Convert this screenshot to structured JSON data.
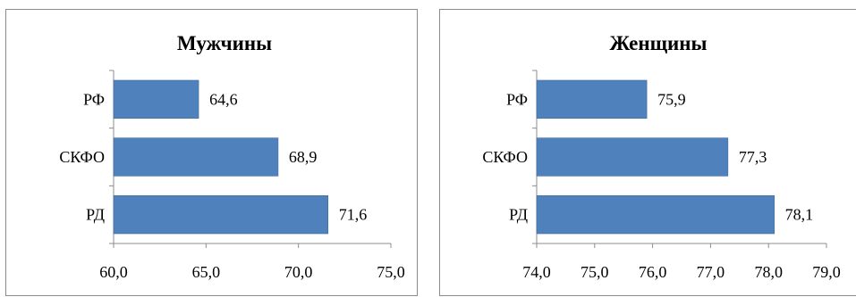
{
  "chart_data": [
    {
      "type": "bar",
      "orientation": "horizontal",
      "title": "Мужчины",
      "categories": [
        "РФ",
        "СКФО",
        "РД"
      ],
      "values": [
        64.6,
        68.9,
        71.6
      ],
      "value_labels": [
        "64,6",
        "68,9",
        "71,6"
      ],
      "xlim": [
        60.0,
        75.0
      ],
      "x_ticks": [
        60.0,
        65.0,
        70.0,
        75.0
      ],
      "x_tick_labels": [
        "60,0",
        "65,0",
        "70,0",
        "75,0"
      ],
      "grid": false,
      "legend": "none",
      "bar_color": "#4f81bd"
    },
    {
      "type": "bar",
      "orientation": "horizontal",
      "title": "Женщины",
      "categories": [
        "РФ",
        "СКФО",
        "РД"
      ],
      "values": [
        75.9,
        77.3,
        78.1
      ],
      "value_labels": [
        "75,9",
        "77,3",
        "78,1"
      ],
      "xlim": [
        74.0,
        79.0
      ],
      "x_ticks": [
        74.0,
        75.0,
        76.0,
        77.0,
        78.0,
        79.0
      ],
      "x_tick_labels": [
        "74,0",
        "75,0",
        "76,0",
        "77,0",
        "78,0",
        "79,0"
      ],
      "grid": false,
      "legend": "none",
      "bar_color": "#4f81bd"
    }
  ]
}
